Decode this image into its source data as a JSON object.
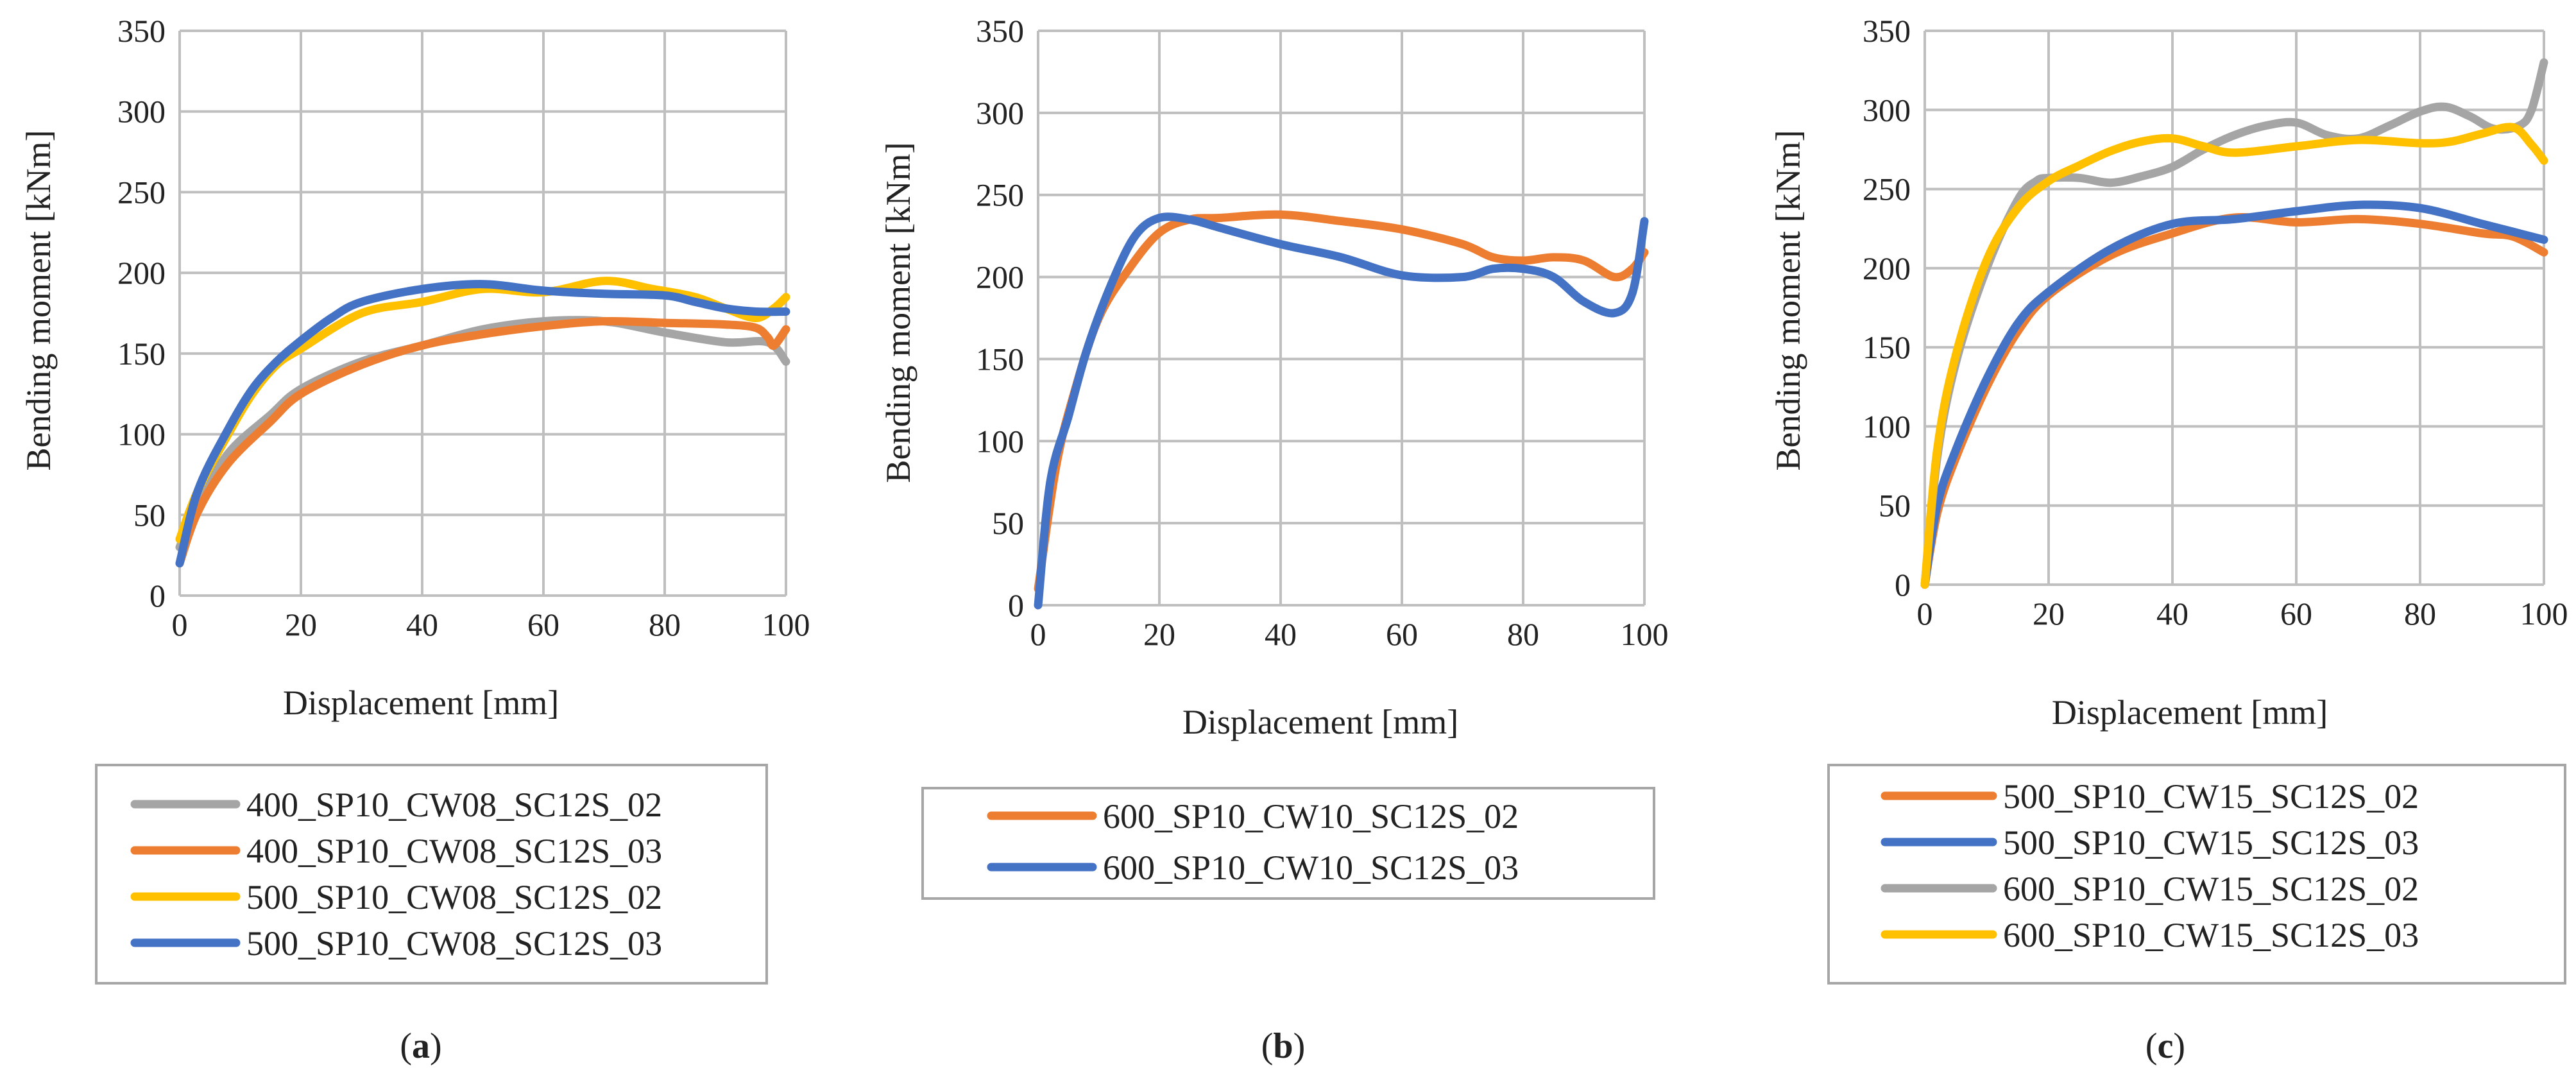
{
  "figure": {
    "captions": [
      {
        "open": "(",
        "letter": "a",
        "close": ")"
      },
      {
        "open": "(",
        "letter": "b",
        "close": ")"
      },
      {
        "open": "(",
        "letter": "c",
        "close": ")"
      }
    ]
  },
  "colors": {
    "gray": "#A5A5A5",
    "orange": "#ED7D31",
    "yellow": "#FFC000",
    "blue": "#4472C4",
    "grid": "#BFBFBF",
    "axis": "#7F7F7F"
  },
  "chart_data": [
    {
      "type": "line",
      "xlabel": "Displacement [mm]",
      "ylabel": "Bending moment [kNm]",
      "xlim": [
        0,
        100
      ],
      "ylim": [
        0,
        350
      ],
      "xticks": [
        0,
        20,
        40,
        60,
        80,
        100
      ],
      "yticks": [
        0,
        50,
        100,
        150,
        200,
        250,
        300,
        350
      ],
      "grid": true,
      "legend_position": "bottom",
      "series": [
        {
          "name": "400_SP10_CW08_SC12S_02",
          "color": "#A5A5A5",
          "x": [
            0,
            3,
            8,
            15,
            20,
            30,
            40,
            50,
            60,
            70,
            80,
            90,
            97,
            100
          ],
          "y": [
            30,
            55,
            88,
            112,
            128,
            145,
            155,
            165,
            170,
            170,
            163,
            157,
            157,
            145
          ]
        },
        {
          "name": "400_SP10_CW08_SC12S_03",
          "color": "#ED7D31",
          "x": [
            0,
            3,
            8,
            15,
            20,
            30,
            40,
            50,
            60,
            70,
            80,
            90,
            95,
            97,
            98,
            100
          ],
          "y": [
            20,
            52,
            82,
            108,
            125,
            143,
            155,
            162,
            167,
            170,
            169,
            168,
            166,
            160,
            155,
            165
          ]
        },
        {
          "name": "500_SP10_CW08_SC12S_02",
          "color": "#FFC000",
          "x": [
            0,
            3,
            8,
            12,
            16,
            20,
            30,
            40,
            50,
            60,
            70,
            78,
            85,
            90,
            95,
            98,
            100
          ],
          "y": [
            35,
            65,
            100,
            125,
            143,
            153,
            175,
            182,
            190,
            188,
            195,
            190,
            185,
            178,
            172,
            178,
            185
          ]
        },
        {
          "name": "500_SP10_CW08_SC12S_03",
          "color": "#4472C4",
          "x": [
            0,
            3,
            8,
            12,
            16,
            20,
            25,
            30,
            40,
            50,
            60,
            70,
            80,
            85,
            90,
            95,
            100
          ],
          "y": [
            20,
            65,
            103,
            128,
            145,
            158,
            172,
            182,
            190,
            193,
            189,
            187,
            186,
            182,
            178,
            176,
            176
          ]
        }
      ]
    },
    {
      "type": "line",
      "xlabel": "Displacement [mm]",
      "ylabel": "Bending moment [kNm]",
      "xlim": [
        0,
        100
      ],
      "ylim": [
        0,
        350
      ],
      "xticks": [
        0,
        20,
        40,
        60,
        80,
        100
      ],
      "yticks": [
        0,
        50,
        100,
        150,
        200,
        250,
        300,
        350
      ],
      "grid": true,
      "legend_position": "bottom",
      "series": [
        {
          "name": "600_SP10_CW10_SC12S_02",
          "color": "#ED7D31",
          "x": [
            0,
            3,
            6,
            10,
            15,
            20,
            25,
            30,
            40,
            50,
            60,
            70,
            75,
            80,
            85,
            90,
            95,
            98,
            100
          ],
          "y": [
            10,
            85,
            130,
            175,
            205,
            227,
            235,
            236,
            238,
            234,
            229,
            220,
            212,
            210,
            212,
            210,
            200,
            205,
            215
          ]
        },
        {
          "name": "600_SP10_CW10_SC12S_03",
          "color": "#4472C4",
          "x": [
            0,
            2,
            5,
            8,
            12,
            16,
            20,
            25,
            30,
            40,
            50,
            60,
            70,
            75,
            80,
            85,
            90,
            95,
            98,
            100
          ],
          "y": [
            0,
            75,
            115,
            155,
            195,
            225,
            236,
            235,
            230,
            220,
            212,
            201,
            200,
            205,
            205,
            200,
            185,
            178,
            190,
            234
          ]
        }
      ]
    },
    {
      "type": "line",
      "xlabel": "Displacement [mm]",
      "ylabel": "Bending moment [kNm]",
      "xlim": [
        0,
        100
      ],
      "ylim": [
        0,
        350
      ],
      "xticks": [
        0,
        20,
        40,
        60,
        80,
        100
      ],
      "yticks": [
        0,
        50,
        100,
        150,
        200,
        250,
        300,
        350
      ],
      "grid": true,
      "legend_position": "bottom",
      "series": [
        {
          "name": "500_SP10_CW15_SC12S_02",
          "color": "#ED7D31",
          "x": [
            0,
            2,
            5,
            10,
            15,
            20,
            30,
            40,
            50,
            60,
            70,
            80,
            90,
            95,
            100
          ],
          "y": [
            0,
            45,
            80,
            125,
            160,
            183,
            208,
            222,
            232,
            229,
            231,
            228,
            222,
            220,
            210
          ]
        },
        {
          "name": "500_SP10_CW15_SC12S_03",
          "color": "#4472C4",
          "x": [
            0,
            2,
            5,
            10,
            15,
            20,
            30,
            40,
            50,
            60,
            70,
            80,
            90,
            95,
            100
          ],
          "y": [
            0,
            50,
            85,
            130,
            165,
            185,
            212,
            228,
            231,
            236,
            240,
            238,
            228,
            223,
            218
          ]
        },
        {
          "name": "600_SP10_CW15_SC12S_02",
          "color": "#A5A5A5",
          "x": [
            0,
            2,
            5,
            10,
            15,
            18,
            20,
            25,
            30,
            35,
            40,
            45,
            50,
            55,
            60,
            65,
            70,
            75,
            80,
            84,
            88,
            92,
            96,
            98,
            100
          ],
          "y": [
            0,
            80,
            140,
            200,
            243,
            255,
            257,
            257,
            254,
            258,
            264,
            275,
            284,
            290,
            292,
            284,
            282,
            290,
            299,
            302,
            296,
            288,
            290,
            300,
            330
          ]
        },
        {
          "name": "600_SP10_CW15_SC12S_03",
          "color": "#FFC000",
          "x": [
            0,
            2,
            5,
            10,
            15,
            20,
            25,
            30,
            35,
            40,
            45,
            50,
            60,
            70,
            80,
            85,
            90,
            95,
            98,
            100
          ],
          "y": [
            0,
            85,
            145,
            205,
            238,
            255,
            265,
            274,
            280,
            282,
            277,
            273,
            277,
            281,
            279,
            280,
            285,
            289,
            278,
            268
          ]
        }
      ]
    }
  ]
}
